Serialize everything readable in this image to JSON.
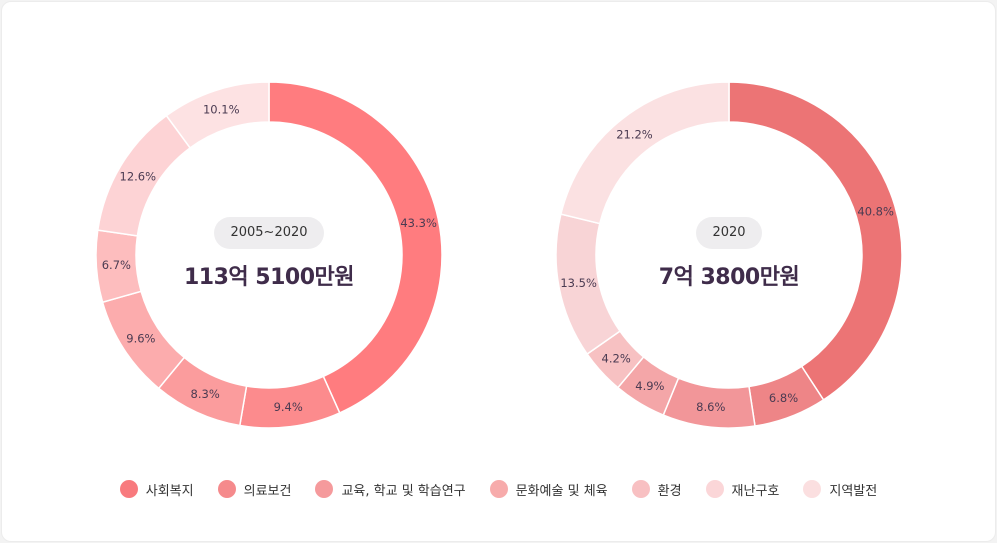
{
  "legend": [
    {
      "label": "사회복지",
      "color": "#f87a7e"
    },
    {
      "label": "의료보건",
      "color": "#f58a8c"
    },
    {
      "label": "교육, 학교 및 학습연구",
      "color": "#f59a9c"
    },
    {
      "label": "문화예술 및 체육",
      "color": "#f7abab"
    },
    {
      "label": "환경",
      "color": "#f8c0c2"
    },
    {
      "label": "재난구호",
      "color": "#fbd6d8"
    },
    {
      "label": "지역발전",
      "color": "#fbdfe0"
    }
  ],
  "chart_data": [
    {
      "type": "pie",
      "donut": true,
      "period": "2005~2020",
      "total": "113억 5100만원",
      "slices": [
        {
          "label": "사회복지",
          "value": 43.3,
          "display": "43.3%",
          "color": "#ff7c7f"
        },
        {
          "label": "의료보건",
          "value": 9.4,
          "display": "9.4%",
          "color": "#fc8b8d"
        },
        {
          "label": "교육, 학교 및 학습연구",
          "value": 8.3,
          "display": "8.3%",
          "color": "#fb9c9d"
        },
        {
          "label": "문화예술 및 체육",
          "value": 9.6,
          "display": "9.6%",
          "color": "#fcacad"
        },
        {
          "label": "환경",
          "value": 6.7,
          "display": "6.7%",
          "color": "#fdbdbe"
        },
        {
          "label": "재난구호",
          "value": 12.6,
          "display": "12.6%",
          "color": "#fdd3d5"
        },
        {
          "label": "지역발전",
          "value": 10.1,
          "display": "10.1%",
          "color": "#fde2e3"
        }
      ]
    },
    {
      "type": "pie",
      "donut": true,
      "period": "2020",
      "total": "7억 3800만원",
      "slices": [
        {
          "label": "사회복지",
          "value": 40.8,
          "display": "40.8%",
          "color": "#ec7475"
        },
        {
          "label": "의료보건",
          "value": 6.8,
          "display": "6.8%",
          "color": "#ee8587"
        },
        {
          "label": "교육, 학교 및 학습연구",
          "value": 8.6,
          "display": "8.6%",
          "color": "#f29699"
        },
        {
          "label": "문화예술 및 체육",
          "value": 4.9,
          "display": "4.9%",
          "color": "#f4a6a8"
        },
        {
          "label": "환경",
          "value": 4.2,
          "display": "4.2%",
          "color": "#f7c1c2"
        },
        {
          "label": "재난구호",
          "value": 13.5,
          "display": "13.5%",
          "color": "#f8d4d6"
        },
        {
          "label": "지역발전",
          "value": 21.2,
          "display": "21.2%",
          "color": "#fbe1e2"
        }
      ]
    }
  ]
}
